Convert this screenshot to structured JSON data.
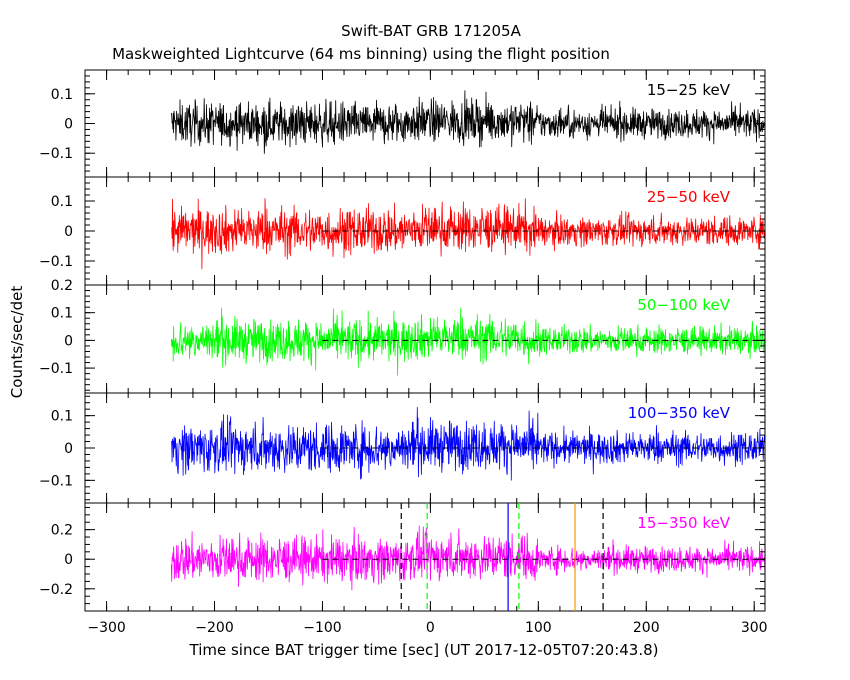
{
  "title": "Swift-BAT GRB 171205A",
  "subtitle": "Maskweighted Lightcurve (64 ms binning) using the flight position",
  "xlabel": "Time since BAT trigger time [sec] (UT 2017-12-05T07:20:43.8)",
  "ylabel": "Counts/sec/det",
  "colors": {
    "black": "#000000",
    "red": "#ff0000",
    "green": "#00ff00",
    "blue": "#0000ff",
    "magenta": "#ff00ff",
    "orange": "#ff9900"
  },
  "chart_data": {
    "type": "line",
    "xlim": [
      -320,
      310
    ],
    "x_ticks": [
      -300,
      -200,
      -100,
      0,
      100,
      200,
      300
    ],
    "data_x_range": [
      -240,
      310
    ],
    "panels": [
      {
        "name": "15-25 keV",
        "label": "15−25 keV",
        "color": "#000000",
        "ylim": [
          -0.18,
          0.18
        ],
        "yticks": [
          0.1,
          0,
          -0.1
        ],
        "ytick_labels": [
          "0.1",
          "0",
          "−0.1"
        ],
        "noise_before_100": 0.065,
        "noise_after_100": 0.045,
        "zero_line": false
      },
      {
        "name": "25-50 keV",
        "label": "25−50 keV",
        "color": "#ff0000",
        "ylim": [
          -0.18,
          0.18
        ],
        "yticks": [
          0.1,
          0,
          -0.1
        ],
        "ytick_labels": [
          "0.1",
          "0",
          "−0.1"
        ],
        "noise_before_100": 0.07,
        "noise_after_100": 0.045,
        "zero_line": true
      },
      {
        "name": "50-100 keV",
        "label": "50−100 keV",
        "color": "#00ff00",
        "ylim": [
          -0.19,
          0.2
        ],
        "yticks": [
          0.2,
          0.1,
          0,
          -0.1
        ],
        "ytick_labels": [
          "0.2",
          "0.1",
          "0",
          "−0.1"
        ],
        "noise_before_100": 0.07,
        "noise_after_100": 0.045,
        "zero_line": true
      },
      {
        "name": "100-350 keV",
        "label": "100−350 keV",
        "color": "#0000ff",
        "ylim": [
          -0.17,
          0.17
        ],
        "yticks": [
          0.1,
          0,
          -0.1
        ],
        "ytick_labels": [
          "0.1",
          "0",
          "−0.1"
        ],
        "noise_before_100": 0.07,
        "noise_after_100": 0.045,
        "zero_line": true
      },
      {
        "name": "15-350 keV",
        "label": "15−350 keV",
        "color": "#ff00ff",
        "ylim": [
          -0.35,
          0.38
        ],
        "yticks": [
          0.2,
          0,
          -0.2
        ],
        "ytick_labels": [
          "0.2",
          "0",
          "−0.2"
        ],
        "noise_before_100": 0.14,
        "noise_after_100": 0.08,
        "zero_line": true
      }
    ],
    "zero_line_x_start": -100,
    "vertical_markers": [
      {
        "x": -27,
        "color": "#000000",
        "style": "dashed"
      },
      {
        "x": -3,
        "color": "#00ff00",
        "style": "dashed"
      },
      {
        "x": 72,
        "color": "#0000ff",
        "style": "solid"
      },
      {
        "x": 82,
        "color": "#00ff00",
        "style": "dashed"
      },
      {
        "x": 134,
        "color": "#ff9900",
        "style": "solid"
      },
      {
        "x": 160,
        "color": "#000000",
        "style": "dashed"
      }
    ]
  }
}
